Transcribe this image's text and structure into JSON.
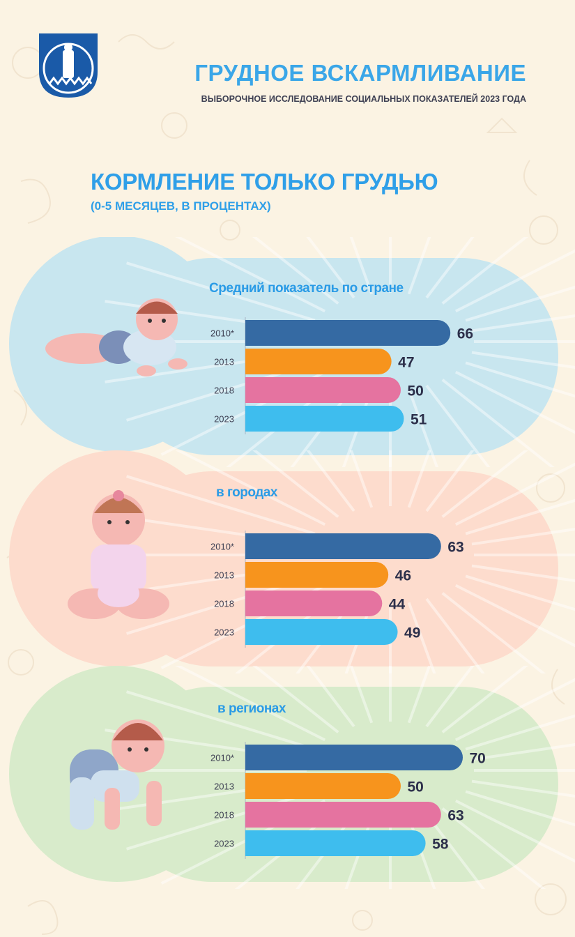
{
  "header": {
    "title": "ГРУДНОЕ ВСКАРМЛИВАНИЕ",
    "subtitle": "ВЫБОРОЧНОЕ ИССЛЕДОВАНИЕ СОЦИАЛЬНЫХ ПОКАЗАТЕЛЕЙ 2023 ГОДА"
  },
  "section": {
    "title": "КОРМЛЕНИЕ ТОЛЬКО ГРУДЬЮ",
    "subtitle": "(0-5 МЕСЯЦЕВ, В ПРОЦЕНТАХ)"
  },
  "colors": {
    "2010*": "#356aa3",
    "2013": "#f7941d",
    "2018": "#e573a0",
    "2023": "#3ebdee",
    "panel_blue": "#c8e6ef",
    "panel_pink": "#fddccd",
    "panel_green": "#d8ebcb"
  },
  "chart_data": [
    {
      "type": "bar",
      "title": "Средний показатель по стране",
      "categories": [
        "2010*",
        "2013",
        "2018",
        "2023"
      ],
      "values": [
        66,
        47,
        50,
        51
      ]
    },
    {
      "type": "bar",
      "title": "в городах",
      "categories": [
        "2010*",
        "2013",
        "2018",
        "2023"
      ],
      "values": [
        63,
        46,
        44,
        49
      ]
    },
    {
      "type": "bar",
      "title": "в регионах",
      "categories": [
        "2010*",
        "2013",
        "2018",
        "2023"
      ],
      "values": [
        70,
        50,
        63,
        58
      ]
    }
  ]
}
